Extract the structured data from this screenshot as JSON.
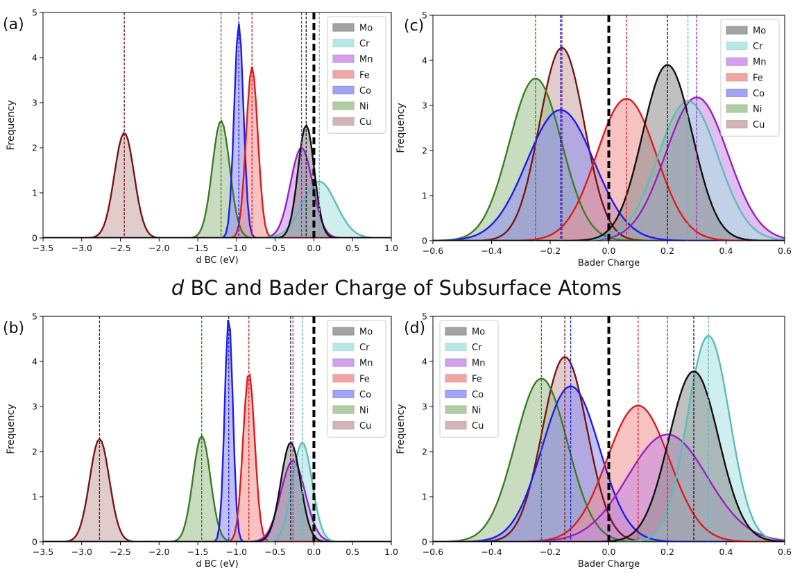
{
  "figure": {
    "title_italic": "d",
    "title_rest": " BC and Bader Charge of Subsurface Atoms"
  },
  "colors": {
    "Mo": {
      "line": "#111111",
      "fill": "#8c8c8c"
    },
    "Cr": {
      "line": "#5bbcbc",
      "fill": "#a8e0e0"
    },
    "Mn": {
      "line": "#9a1fc4",
      "fill": "#c58be6"
    },
    "Fe": {
      "line": "#e01b1b",
      "fill": "#ee9090"
    },
    "Co": {
      "line": "#1c1cf0",
      "fill": "#8c8cf0"
    },
    "Ni": {
      "line": "#3a7d22",
      "fill": "#9dc08c"
    },
    "Cu": {
      "line": "#7a1515",
      "fill": "#c9a2a2"
    }
  },
  "chart_data": [
    {
      "panel": "(a)",
      "type": "area",
      "xlabel": "d BC (eV)",
      "ylabel": "Frequency",
      "xlim": [
        -3.5,
        1.0
      ],
      "ylim": [
        0,
        5
      ],
      "xticks": [
        "-3.5",
        "-3.0",
        "-2.5",
        "-2.0",
        "-1.5",
        "-1.0",
        "-0.5",
        "0.0",
        "0.5",
        "1.0"
      ],
      "xtick_vals": [
        -3.5,
        -3.0,
        -2.5,
        -2.0,
        -1.5,
        -1.0,
        -0.5,
        0.0,
        0.5,
        1.0
      ],
      "yticks": [
        "0",
        "1",
        "2",
        "3",
        "4",
        "5"
      ],
      "legend": "top-right",
      "reference_line": 0.0,
      "series": [
        {
          "name": "Mo",
          "mean": -0.1,
          "peak": 2.5
        },
        {
          "name": "Cr",
          "mean": 0.07,
          "peak": 1.25
        },
        {
          "name": "Mn",
          "mean": -0.16,
          "peak": 2.0
        },
        {
          "name": "Fe",
          "mean": -0.8,
          "peak": 3.8
        },
        {
          "name": "Co",
          "mean": -0.97,
          "peak": 4.75
        },
        {
          "name": "Ni",
          "mean": -1.2,
          "peak": 2.6
        },
        {
          "name": "Cu",
          "mean": -2.45,
          "peak": 2.33
        }
      ]
    },
    {
      "panel": "(c)",
      "type": "area",
      "xlabel": "Bader Charge",
      "ylabel": "Frequency",
      "xlim": [
        -0.6,
        0.6
      ],
      "ylim": [
        0,
        5
      ],
      "xticks": [
        "-0.6",
        "-0.4",
        "-0.2",
        "0.0",
        "0.2",
        "0.4",
        "0.6"
      ],
      "xtick_vals": [
        -0.6,
        -0.4,
        -0.2,
        0.0,
        0.2,
        0.4,
        0.6
      ],
      "yticks": [
        "0",
        "1",
        "2",
        "3",
        "4",
        "5"
      ],
      "legend": "top-right",
      "reference_line": 0.0,
      "series": [
        {
          "name": "Mo",
          "mean": 0.2,
          "peak": 3.9
        },
        {
          "name": "Cr",
          "mean": 0.27,
          "peak": 3.1
        },
        {
          "name": "Mn",
          "mean": 0.3,
          "peak": 3.18
        },
        {
          "name": "Fe",
          "mean": 0.06,
          "peak": 3.15
        },
        {
          "name": "Co",
          "mean": -0.165,
          "peak": 2.9
        },
        {
          "name": "Ni",
          "mean": -0.25,
          "peak": 3.6
        },
        {
          "name": "Cu",
          "mean": -0.16,
          "peak": 4.28
        }
      ]
    },
    {
      "panel": "(b)",
      "type": "area",
      "xlabel": "d BC (eV)",
      "ylabel": "Frequency",
      "xlim": [
        -3.5,
        1.0
      ],
      "ylim": [
        0,
        5
      ],
      "xticks": [
        "-3.5",
        "-3.0",
        "-2.5",
        "-2.0",
        "-1.5",
        "-1.0",
        "-0.5",
        "0.0",
        "0.5",
        "1.0"
      ],
      "xtick_vals": [
        -3.5,
        -3.0,
        -2.5,
        -2.0,
        -1.5,
        -1.0,
        -0.5,
        0.0,
        0.5,
        1.0
      ],
      "yticks": [
        "0",
        "1",
        "2",
        "3",
        "4",
        "5"
      ],
      "legend": "top-right",
      "reference_line": 0.0,
      "series": [
        {
          "name": "Mo",
          "mean": -0.3,
          "peak": 2.2
        },
        {
          "name": "Cr",
          "mean": -0.15,
          "peak": 2.2
        },
        {
          "name": "Mn",
          "mean": -0.27,
          "peak": 1.8
        },
        {
          "name": "Fe",
          "mean": -0.84,
          "peak": 3.75
        },
        {
          "name": "Co",
          "mean": -1.1,
          "peak": 5.0
        },
        {
          "name": "Ni",
          "mean": -1.45,
          "peak": 2.35
        },
        {
          "name": "Cu",
          "mean": -2.77,
          "peak": 2.28
        }
      ]
    },
    {
      "panel": "(d)",
      "type": "area",
      "xlabel": "Bader Charge",
      "ylabel": "Frequency",
      "xlim": [
        -0.6,
        0.6
      ],
      "ylim": [
        0,
        5
      ],
      "xticks": [
        "-0.6",
        "-0.4",
        "-0.2",
        "0.0",
        "0.2",
        "0.4",
        "0.6"
      ],
      "xtick_vals": [
        -0.6,
        -0.4,
        -0.2,
        0.0,
        0.2,
        0.4,
        0.6
      ],
      "yticks": [
        "0",
        "1",
        "2",
        "3",
        "4",
        "5"
      ],
      "legend": "top-left",
      "reference_line": 0.0,
      "series": [
        {
          "name": "Mo",
          "mean": 0.29,
          "peak": 3.78
        },
        {
          "name": "Cr",
          "mean": 0.34,
          "peak": 4.57
        },
        {
          "name": "Mn",
          "mean": 0.2,
          "peak": 2.38
        },
        {
          "name": "Fe",
          "mean": 0.1,
          "peak": 3.02
        },
        {
          "name": "Co",
          "mean": -0.13,
          "peak": 3.45
        },
        {
          "name": "Ni",
          "mean": -0.23,
          "peak": 3.62
        },
        {
          "name": "Cu",
          "mean": -0.15,
          "peak": 4.1
        }
      ]
    }
  ]
}
